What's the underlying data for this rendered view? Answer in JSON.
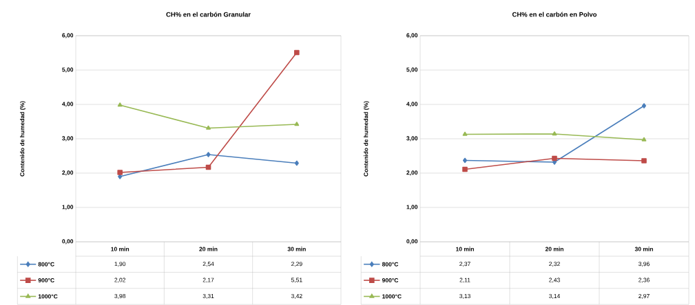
{
  "chart_data": [
    {
      "type": "line",
      "title": "CH% en el carbón Granular",
      "ylabel": "Contenido de humedad (%)",
      "categories": [
        "10 min",
        "20 min",
        "30 min"
      ],
      "ylim": [
        0,
        6
      ],
      "yticks": [
        {
          "value": 0,
          "label": "0,00"
        },
        {
          "value": 1,
          "label": "1,00"
        },
        {
          "value": 2,
          "label": "2,00"
        },
        {
          "value": 3,
          "label": "3,00"
        },
        {
          "value": 4,
          "label": "4,00"
        },
        {
          "value": 5,
          "label": "5,00"
        },
        {
          "value": 6,
          "label": "6,00"
        }
      ],
      "grid": "y",
      "legend": "bottom",
      "series": [
        {
          "name": "800°C",
          "color": "#4a7ebb",
          "marker": "diamond",
          "values": [
            1.9,
            2.54,
            2.29
          ],
          "value_labels": [
            "1,90",
            "2,54",
            "2,29"
          ]
        },
        {
          "name": "900°C",
          "color": "#be4b48",
          "marker": "square",
          "values": [
            2.02,
            2.17,
            5.51
          ],
          "value_labels": [
            "2,02",
            "2,17",
            "5,51"
          ]
        },
        {
          "name": "1000°C",
          "color": "#98b954",
          "marker": "triangle",
          "values": [
            3.98,
            3.31,
            3.42
          ],
          "value_labels": [
            "3,98",
            "3,31",
            "3,42"
          ]
        }
      ]
    },
    {
      "type": "line",
      "title": "CH% en el carbón en Polvo",
      "ylabel": "Contenido de humedad (%)",
      "categories": [
        "10 min",
        "20 min",
        "30 min"
      ],
      "ylim": [
        0,
        6
      ],
      "yticks": [
        {
          "value": 0,
          "label": "0,00"
        },
        {
          "value": 1,
          "label": "1,00"
        },
        {
          "value": 2,
          "label": "2,00"
        },
        {
          "value": 3,
          "label": "3,00"
        },
        {
          "value": 4,
          "label": "4,00"
        },
        {
          "value": 5,
          "label": "5,00"
        },
        {
          "value": 6,
          "label": "6,00"
        }
      ],
      "grid": "y",
      "legend": "bottom",
      "series": [
        {
          "name": "800°C",
          "color": "#4a7ebb",
          "marker": "diamond",
          "values": [
            2.37,
            2.32,
            3.96
          ],
          "value_labels": [
            "2,37",
            "2,32",
            "3,96"
          ]
        },
        {
          "name": "900°C",
          "color": "#be4b48",
          "marker": "square",
          "values": [
            2.11,
            2.43,
            2.36
          ],
          "value_labels": [
            "2,11",
            "2,43",
            "2,36"
          ]
        },
        {
          "name": "1000°C",
          "color": "#98b954",
          "marker": "triangle",
          "values": [
            3.13,
            3.14,
            2.97
          ],
          "value_labels": [
            "3,13",
            "3,14",
            "2,97"
          ]
        }
      ]
    }
  ]
}
